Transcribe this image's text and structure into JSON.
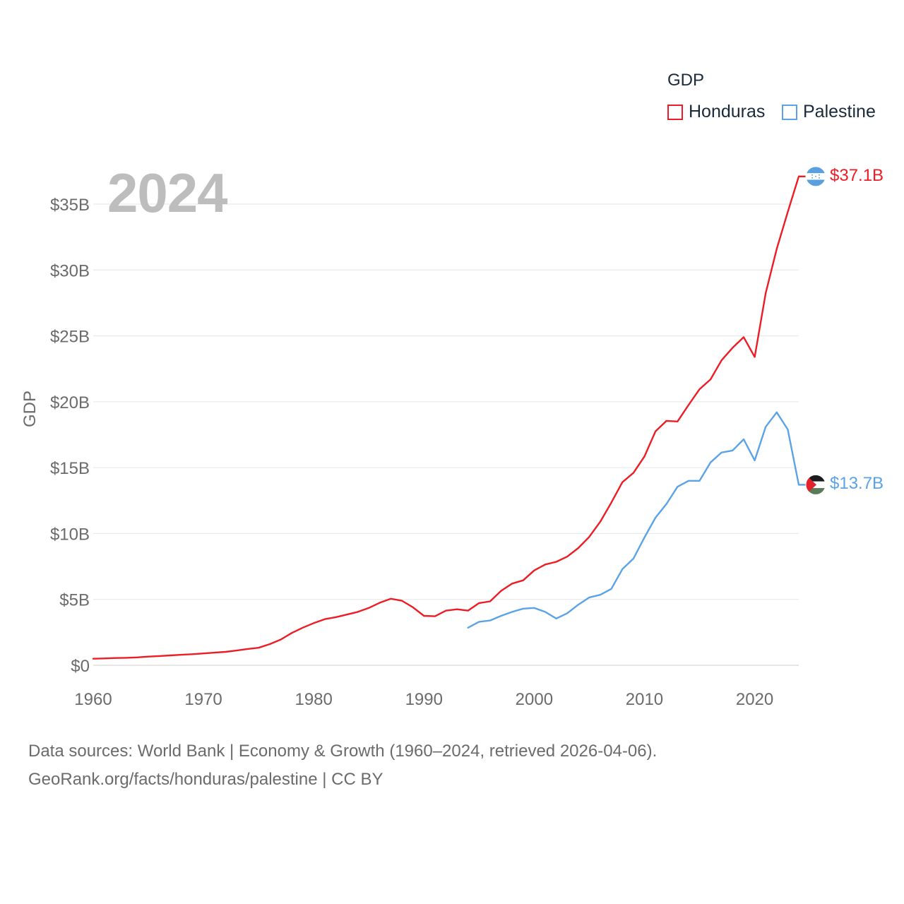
{
  "chart_data": {
    "type": "line",
    "title": "",
    "current_year": "2024",
    "ylabel": "GDP",
    "xlabel": "",
    "xlim": [
      1960,
      2024
    ],
    "ylim": [
      0,
      38
    ],
    "x_ticks": [
      1960,
      1970,
      1980,
      1990,
      2000,
      2010,
      2020
    ],
    "y_ticks": [
      {
        "value": 0,
        "label": "$0"
      },
      {
        "value": 5,
        "label": "$5B"
      },
      {
        "value": 10,
        "label": "$10B"
      },
      {
        "value": 15,
        "label": "$15B"
      },
      {
        "value": 20,
        "label": "$20B"
      },
      {
        "value": 25,
        "label": "$25B"
      },
      {
        "value": 30,
        "label": "$30B"
      },
      {
        "value": 35,
        "label": "$35B"
      }
    ],
    "legend": {
      "title": "GDP",
      "position": "top-right"
    },
    "units": "billions USD",
    "series": [
      {
        "name": "Honduras",
        "color": "#ee1c25",
        "end_label": "$37.1B",
        "flag": "honduras-flag",
        "points": [
          [
            1960,
            0.5
          ],
          [
            1961,
            0.52
          ],
          [
            1962,
            0.55
          ],
          [
            1963,
            0.57
          ],
          [
            1964,
            0.6
          ],
          [
            1965,
            0.66
          ],
          [
            1966,
            0.7
          ],
          [
            1967,
            0.75
          ],
          [
            1968,
            0.8
          ],
          [
            1969,
            0.84
          ],
          [
            1970,
            0.9
          ],
          [
            1971,
            0.96
          ],
          [
            1972,
            1.02
          ],
          [
            1973,
            1.12
          ],
          [
            1974,
            1.24
          ],
          [
            1975,
            1.33
          ],
          [
            1976,
            1.6
          ],
          [
            1977,
            1.95
          ],
          [
            1978,
            2.45
          ],
          [
            1979,
            2.85
          ],
          [
            1980,
            3.2
          ],
          [
            1981,
            3.5
          ],
          [
            1982,
            3.65
          ],
          [
            1983,
            3.85
          ],
          [
            1984,
            4.05
          ],
          [
            1985,
            4.35
          ],
          [
            1986,
            4.75
          ],
          [
            1987,
            5.05
          ],
          [
            1988,
            4.9
          ],
          [
            1989,
            4.4
          ],
          [
            1990,
            3.75
          ],
          [
            1991,
            3.72
          ],
          [
            1992,
            4.15
          ],
          [
            1993,
            4.25
          ],
          [
            1994,
            4.15
          ],
          [
            1995,
            4.72
          ],
          [
            1996,
            4.85
          ],
          [
            1997,
            5.65
          ],
          [
            1998,
            6.2
          ],
          [
            1999,
            6.45
          ],
          [
            2000,
            7.2
          ],
          [
            2001,
            7.65
          ],
          [
            2002,
            7.85
          ],
          [
            2003,
            8.25
          ],
          [
            2004,
            8.9
          ],
          [
            2005,
            9.75
          ],
          [
            2006,
            10.9
          ],
          [
            2007,
            12.35
          ],
          [
            2008,
            13.9
          ],
          [
            2009,
            14.6
          ],
          [
            2010,
            15.85
          ],
          [
            2011,
            17.75
          ],
          [
            2012,
            18.55
          ],
          [
            2013,
            18.5
          ],
          [
            2014,
            19.75
          ],
          [
            2015,
            20.95
          ],
          [
            2016,
            21.7
          ],
          [
            2017,
            23.15
          ],
          [
            2018,
            24.1
          ],
          [
            2019,
            24.9
          ],
          [
            2020,
            23.4
          ],
          [
            2021,
            28.25
          ],
          [
            2022,
            31.6
          ],
          [
            2023,
            34.4
          ],
          [
            2024,
            37.1
          ]
        ]
      },
      {
        "name": "Palestine",
        "color": "#5ba3e6",
        "end_label": "$13.7B",
        "flag": "palestine-flag",
        "points": [
          [
            1994,
            2.85
          ],
          [
            1995,
            3.3
          ],
          [
            1996,
            3.4
          ],
          [
            1997,
            3.75
          ],
          [
            1998,
            4.05
          ],
          [
            1999,
            4.3
          ],
          [
            2000,
            4.35
          ],
          [
            2001,
            4.05
          ],
          [
            2002,
            3.55
          ],
          [
            2003,
            3.95
          ],
          [
            2004,
            4.6
          ],
          [
            2005,
            5.15
          ],
          [
            2006,
            5.35
          ],
          [
            2007,
            5.8
          ],
          [
            2008,
            7.3
          ],
          [
            2009,
            8.1
          ],
          [
            2010,
            9.7
          ],
          [
            2011,
            11.2
          ],
          [
            2012,
            12.25
          ],
          [
            2013,
            13.55
          ],
          [
            2014,
            14.0
          ],
          [
            2015,
            14.0
          ],
          [
            2016,
            15.4
          ],
          [
            2017,
            16.15
          ],
          [
            2018,
            16.3
          ],
          [
            2019,
            17.15
          ],
          [
            2020,
            15.55
          ],
          [
            2021,
            18.1
          ],
          [
            2022,
            19.2
          ],
          [
            2023,
            17.9
          ],
          [
            2024,
            13.7
          ]
        ]
      }
    ]
  },
  "footer": {
    "line1": "Data sources: World Bank | Economy & Growth (1960–2024, retrieved 2026-04-06).",
    "line2": "GeoRank.org/facts/honduras/palestine | CC BY"
  }
}
